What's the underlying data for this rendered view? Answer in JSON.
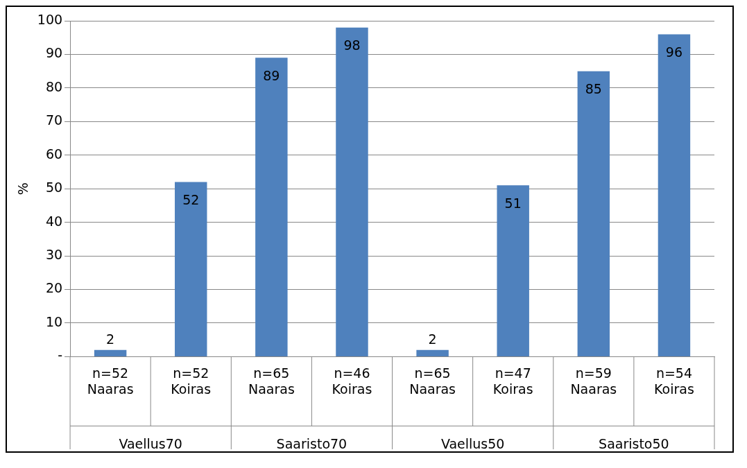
{
  "chart_data": {
    "type": "bar",
    "ylabel": "%",
    "categories": [
      "n=52\nNaaras",
      "n=52\nKoiras",
      "n=65\nNaaras",
      "n=46\nKoiras",
      "n=65\nNaaras",
      "n=47\nKoiras",
      "n=59\nNaaras",
      "n=54\nKoiras"
    ],
    "values": [
      2,
      52,
      89,
      98,
      2,
      51,
      85,
      96
    ],
    "color": "#4f81bd",
    "ylim": [
      0,
      100
    ],
    "yticks": [
      {
        "value": 0,
        "label": "-"
      },
      10,
      20,
      30,
      40,
      50,
      60,
      70,
      80,
      90,
      100
    ],
    "grid": "y",
    "data_labels": true,
    "legend": false,
    "annotations": [
      "Vaellus70",
      "Saaristo70",
      "Vaellus50",
      "Saaristo50"
    ]
  }
}
